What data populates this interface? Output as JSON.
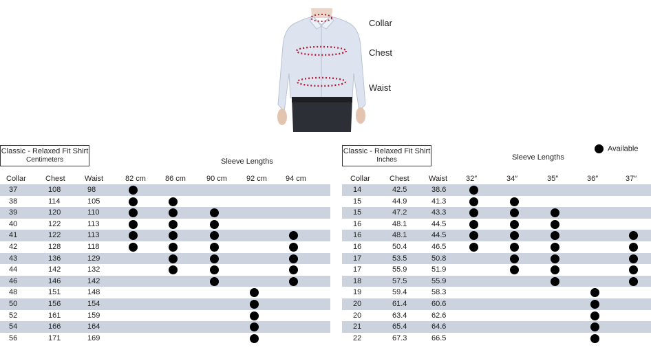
{
  "measure_labels": [
    "Collar",
    "Chest",
    "Waist"
  ],
  "legend_label": "Available",
  "left_table": {
    "title": "Classic - Relaxed Fit Shirt",
    "unit": "Centimeters",
    "sleeve_title": "Sleeve Lengths",
    "columns": [
      "Collar",
      "Chest",
      "Waist"
    ],
    "sleeves": [
      "82 cm",
      "86 cm",
      "90 cm",
      "92 cm",
      "94 cm"
    ],
    "rows": [
      {
        "collar": "37",
        "chest": "108",
        "waist": "98",
        "avail": [
          1,
          0,
          0,
          0,
          0
        ]
      },
      {
        "collar": "38",
        "chest": "114",
        "waist": "105",
        "avail": [
          1,
          1,
          0,
          0,
          0
        ]
      },
      {
        "collar": "39",
        "chest": "120",
        "waist": "110",
        "avail": [
          1,
          1,
          1,
          0,
          0
        ]
      },
      {
        "collar": "40",
        "chest": "122",
        "waist": "113",
        "avail": [
          1,
          1,
          1,
          0,
          0
        ]
      },
      {
        "collar": "41",
        "chest": "122",
        "waist": "113",
        "avail": [
          1,
          1,
          1,
          0,
          1
        ]
      },
      {
        "collar": "42",
        "chest": "128",
        "waist": "118",
        "avail": [
          1,
          1,
          1,
          0,
          1
        ]
      },
      {
        "collar": "43",
        "chest": "136",
        "waist": "129",
        "avail": [
          0,
          1,
          1,
          0,
          1
        ]
      },
      {
        "collar": "44",
        "chest": "142",
        "waist": "132",
        "avail": [
          0,
          1,
          1,
          0,
          1
        ]
      },
      {
        "collar": "46",
        "chest": "146",
        "waist": "142",
        "avail": [
          0,
          0,
          1,
          0,
          1
        ]
      },
      {
        "collar": "48",
        "chest": "151",
        "waist": "148",
        "avail": [
          0,
          0,
          0,
          1,
          0
        ]
      },
      {
        "collar": "50",
        "chest": "156",
        "waist": "154",
        "avail": [
          0,
          0,
          0,
          1,
          0
        ]
      },
      {
        "collar": "52",
        "chest": "161",
        "waist": "159",
        "avail": [
          0,
          0,
          0,
          1,
          0
        ]
      },
      {
        "collar": "54",
        "chest": "166",
        "waist": "164",
        "avail": [
          0,
          0,
          0,
          1,
          0
        ]
      },
      {
        "collar": "56",
        "chest": "171",
        "waist": "169",
        "avail": [
          0,
          0,
          0,
          1,
          0
        ]
      }
    ]
  },
  "right_table": {
    "title": "Classic - Relaxed Fit Shirt",
    "unit": "Inches",
    "sleeve_title": "Sleeve Lengths",
    "columns": [
      "Collar",
      "Chest",
      "Waist"
    ],
    "sleeves": [
      "32″",
      "34″",
      "35″",
      "36″",
      "37″"
    ],
    "rows": [
      {
        "collar": "14",
        "chest": "42.5",
        "waist": "38.6",
        "avail": [
          1,
          0,
          0,
          0,
          0
        ]
      },
      {
        "collar": "15",
        "chest": "44.9",
        "waist": "41.3",
        "avail": [
          1,
          1,
          0,
          0,
          0
        ]
      },
      {
        "collar": "15",
        "chest": "47.2",
        "waist": "43.3",
        "avail": [
          1,
          1,
          1,
          0,
          0
        ]
      },
      {
        "collar": "16",
        "chest": "48.1",
        "waist": "44.5",
        "avail": [
          1,
          1,
          1,
          0,
          0
        ]
      },
      {
        "collar": "16",
        "chest": "48.1",
        "waist": "44.5",
        "avail": [
          1,
          1,
          1,
          0,
          1
        ]
      },
      {
        "collar": "16",
        "chest": "50.4",
        "waist": "46.5",
        "avail": [
          1,
          1,
          1,
          0,
          1
        ]
      },
      {
        "collar": "17",
        "chest": "53.5",
        "waist": "50.8",
        "avail": [
          0,
          1,
          1,
          0,
          1
        ]
      },
      {
        "collar": "17",
        "chest": "55.9",
        "waist": "51.9",
        "avail": [
          0,
          1,
          1,
          0,
          1
        ]
      },
      {
        "collar": "18",
        "chest": "57.5",
        "waist": "55.9",
        "avail": [
          0,
          0,
          1,
          0,
          1
        ]
      },
      {
        "collar": "19",
        "chest": "59.4",
        "waist": "58.3",
        "avail": [
          0,
          0,
          0,
          1,
          0
        ]
      },
      {
        "collar": "20",
        "chest": "61.4",
        "waist": "60.6",
        "avail": [
          0,
          0,
          0,
          1,
          0
        ]
      },
      {
        "collar": "20",
        "chest": "63.4",
        "waist": "62.6",
        "avail": [
          0,
          0,
          0,
          1,
          0
        ]
      },
      {
        "collar": "21",
        "chest": "65.4",
        "waist": "64.6",
        "avail": [
          0,
          0,
          0,
          1,
          0
        ]
      },
      {
        "collar": "22",
        "chest": "67.3",
        "waist": "66.5",
        "avail": [
          0,
          0,
          0,
          1,
          0
        ]
      }
    ]
  }
}
